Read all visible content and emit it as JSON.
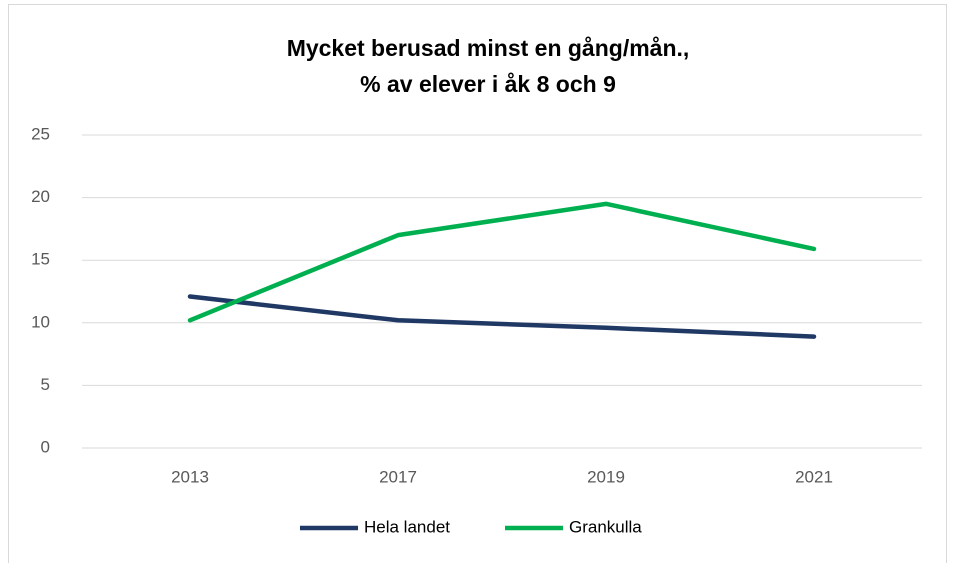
{
  "chart_data": {
    "type": "line",
    "title": [
      "Mycket berusad minst en gång/mån.,",
      "% av elever i åk 8 och 9"
    ],
    "categories": [
      "2013",
      "2017",
      "2019",
      "2021"
    ],
    "series": [
      {
        "name": "Hela landet",
        "color": "#203864",
        "values": [
          12.1,
          10.2,
          9.6,
          8.9
        ]
      },
      {
        "name": "Grankulla",
        "color": "#00b050",
        "values": [
          10.2,
          17.0,
          19.5,
          15.9
        ]
      }
    ],
    "ylim": [
      0,
      25
    ],
    "yticks": [
      0,
      5,
      10,
      15,
      20,
      25
    ],
    "grid": true,
    "legend": "bottom"
  }
}
